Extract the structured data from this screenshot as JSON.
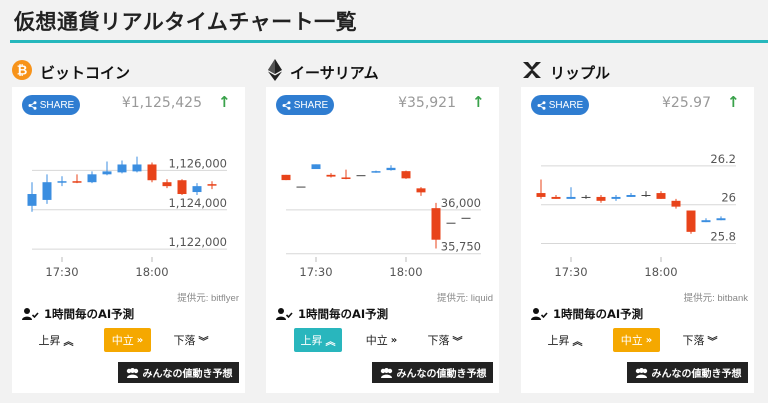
{
  "page": {
    "title": "仮想通貨リアルタイムチャート一覧"
  },
  "colors": {
    "accent": "#26b7bc",
    "share": "#2f7dd1",
    "up": "#3b8ee0",
    "down": "#e8431a",
    "neutral_active": "#f5a800",
    "up_active": "#29b6bd"
  },
  "ui": {
    "share_label": "SHARE",
    "ai_label": "1時間毎のAI予測",
    "rise_label": "上昇",
    "neutral_label": "中立",
    "fall_label": "下落",
    "everyone_label": "みんなの値動き予想"
  },
  "cards": [
    {
      "name": "ビットコイン",
      "icon": "bitcoin-icon",
      "price": "¥1,125,425",
      "trend_arrow": "↑",
      "provider": "提供元: bitflyer",
      "active_prediction": "neutral",
      "chart_data": {
        "type": "candlestick",
        "x_ticks": [
          "17:30",
          "18:00"
        ],
        "y_ticks": [
          "1,126,000",
          "1,124,000",
          "1,122,000"
        ],
        "y_tick_values": [
          1126000,
          1124000,
          1122000
        ],
        "ylim": [
          1121500,
          1128000
        ],
        "candles": [
          {
            "o": 1124200,
            "c": 1124800,
            "h": 1125400,
            "l": 1123900
          },
          {
            "o": 1124500,
            "c": 1125400,
            "h": 1125800,
            "l": 1124300
          },
          {
            "o": 1125400,
            "c": 1125450,
            "h": 1125700,
            "l": 1125200
          },
          {
            "o": 1125450,
            "c": 1125400,
            "h": 1125800,
            "l": 1125350
          },
          {
            "o": 1125400,
            "c": 1125800,
            "h": 1125950,
            "l": 1125350
          },
          {
            "o": 1125800,
            "c": 1125950,
            "h": 1126450,
            "l": 1125750
          },
          {
            "o": 1125900,
            "c": 1126300,
            "h": 1126500,
            "l": 1125850
          },
          {
            "o": 1125950,
            "c": 1126300,
            "h": 1126700,
            "l": 1125900
          },
          {
            "o": 1126300,
            "c": 1125500,
            "h": 1126400,
            "l": 1125400
          },
          {
            "o": 1125400,
            "c": 1125200,
            "h": 1125550,
            "l": 1125100
          },
          {
            "o": 1125500,
            "c": 1124800,
            "h": 1125550,
            "l": 1124750
          },
          {
            "o": 1124900,
            "c": 1125200,
            "h": 1125350,
            "l": 1124750
          },
          {
            "o": 1125300,
            "c": 1125250,
            "h": 1125450,
            "l": 1125050
          }
        ]
      }
    },
    {
      "name": "イーサリアム",
      "icon": "ethereum-icon",
      "price": "¥35,921",
      "trend_arrow": "↑",
      "provider": "提供元: liquid",
      "active_prediction": "rise",
      "chart_data": {
        "type": "candlestick",
        "x_ticks": [
          "17:30",
          "18:00"
        ],
        "y_ticks": [
          "36,000",
          "35,750"
        ],
        "y_tick_values": [
          36000,
          35750
        ],
        "ylim": [
          35720,
          36450
        ],
        "candles": [
          {
            "o": 36200,
            "c": 36170,
            "h": 36200,
            "l": 36170
          },
          {
            "o": 36133,
            "c": 36133,
            "h": 36133,
            "l": 36133
          },
          {
            "o": 36233,
            "c": 36260,
            "h": 36260,
            "l": 36233
          },
          {
            "o": 36200,
            "c": 36190,
            "h": 36210,
            "l": 36185
          },
          {
            "o": 36185,
            "c": 36180,
            "h": 36230,
            "l": 36175
          },
          {
            "o": 36198,
            "c": 36198,
            "h": 36198,
            "l": 36198
          },
          {
            "o": 36215,
            "c": 36221,
            "h": 36224,
            "l": 36212
          },
          {
            "o": 36227,
            "c": 36240,
            "h": 36255,
            "l": 36224
          },
          {
            "o": 36221,
            "c": 36180,
            "h": 36224,
            "l": 36177
          },
          {
            "o": 36123,
            "c": 36100,
            "h": 36130,
            "l": 36080
          },
          {
            "o": 36010,
            "c": 35830,
            "h": 36040,
            "l": 35780
          },
          {
            "o": 35927,
            "c": 35927,
            "h": 35927,
            "l": 35927
          },
          {
            "o": 35955,
            "c": 35955,
            "h": 35955,
            "l": 35955
          }
        ]
      }
    },
    {
      "name": "リップル",
      "icon": "ripple-icon",
      "price": "¥25.97",
      "trend_arrow": "↑",
      "provider": "提供元: bitbank",
      "active_prediction": "neutral",
      "chart_data": {
        "type": "candlestick",
        "x_ticks": [
          "17:30",
          "18:00"
        ],
        "y_ticks": [
          "26.2",
          "26",
          "25.8"
        ],
        "y_tick_values": [
          26.2,
          26.0,
          25.8
        ],
        "ylim": [
          25.72,
          26.38
        ],
        "candles": [
          {
            "o": 26.06,
            "c": 26.04,
            "h": 26.13,
            "l": 26.03
          },
          {
            "o": 26.04,
            "c": 26.03,
            "h": 26.05,
            "l": 26.03
          },
          {
            "o": 26.03,
            "c": 26.04,
            "h": 26.09,
            "l": 26.03
          },
          {
            "o": 26.04,
            "c": 26.04,
            "h": 26.05,
            "l": 26.03
          },
          {
            "o": 26.04,
            "c": 26.02,
            "h": 26.05,
            "l": 26.01
          },
          {
            "o": 26.03,
            "c": 26.04,
            "h": 26.05,
            "l": 26.02
          },
          {
            "o": 26.04,
            "c": 26.05,
            "h": 26.06,
            "l": 26.04
          },
          {
            "o": 26.05,
            "c": 26.05,
            "h": 26.07,
            "l": 26.04
          },
          {
            "o": 26.06,
            "c": 26.03,
            "h": 26.07,
            "l": 26.03
          },
          {
            "o": 26.02,
            "c": 25.99,
            "h": 26.03,
            "l": 25.98
          },
          {
            "o": 25.97,
            "c": 25.86,
            "h": 25.97,
            "l": 25.85
          },
          {
            "o": 25.91,
            "c": 25.92,
            "h": 25.93,
            "l": 25.91
          },
          {
            "o": 25.92,
            "c": 25.93,
            "h": 25.94,
            "l": 25.92
          }
        ]
      }
    }
  ]
}
